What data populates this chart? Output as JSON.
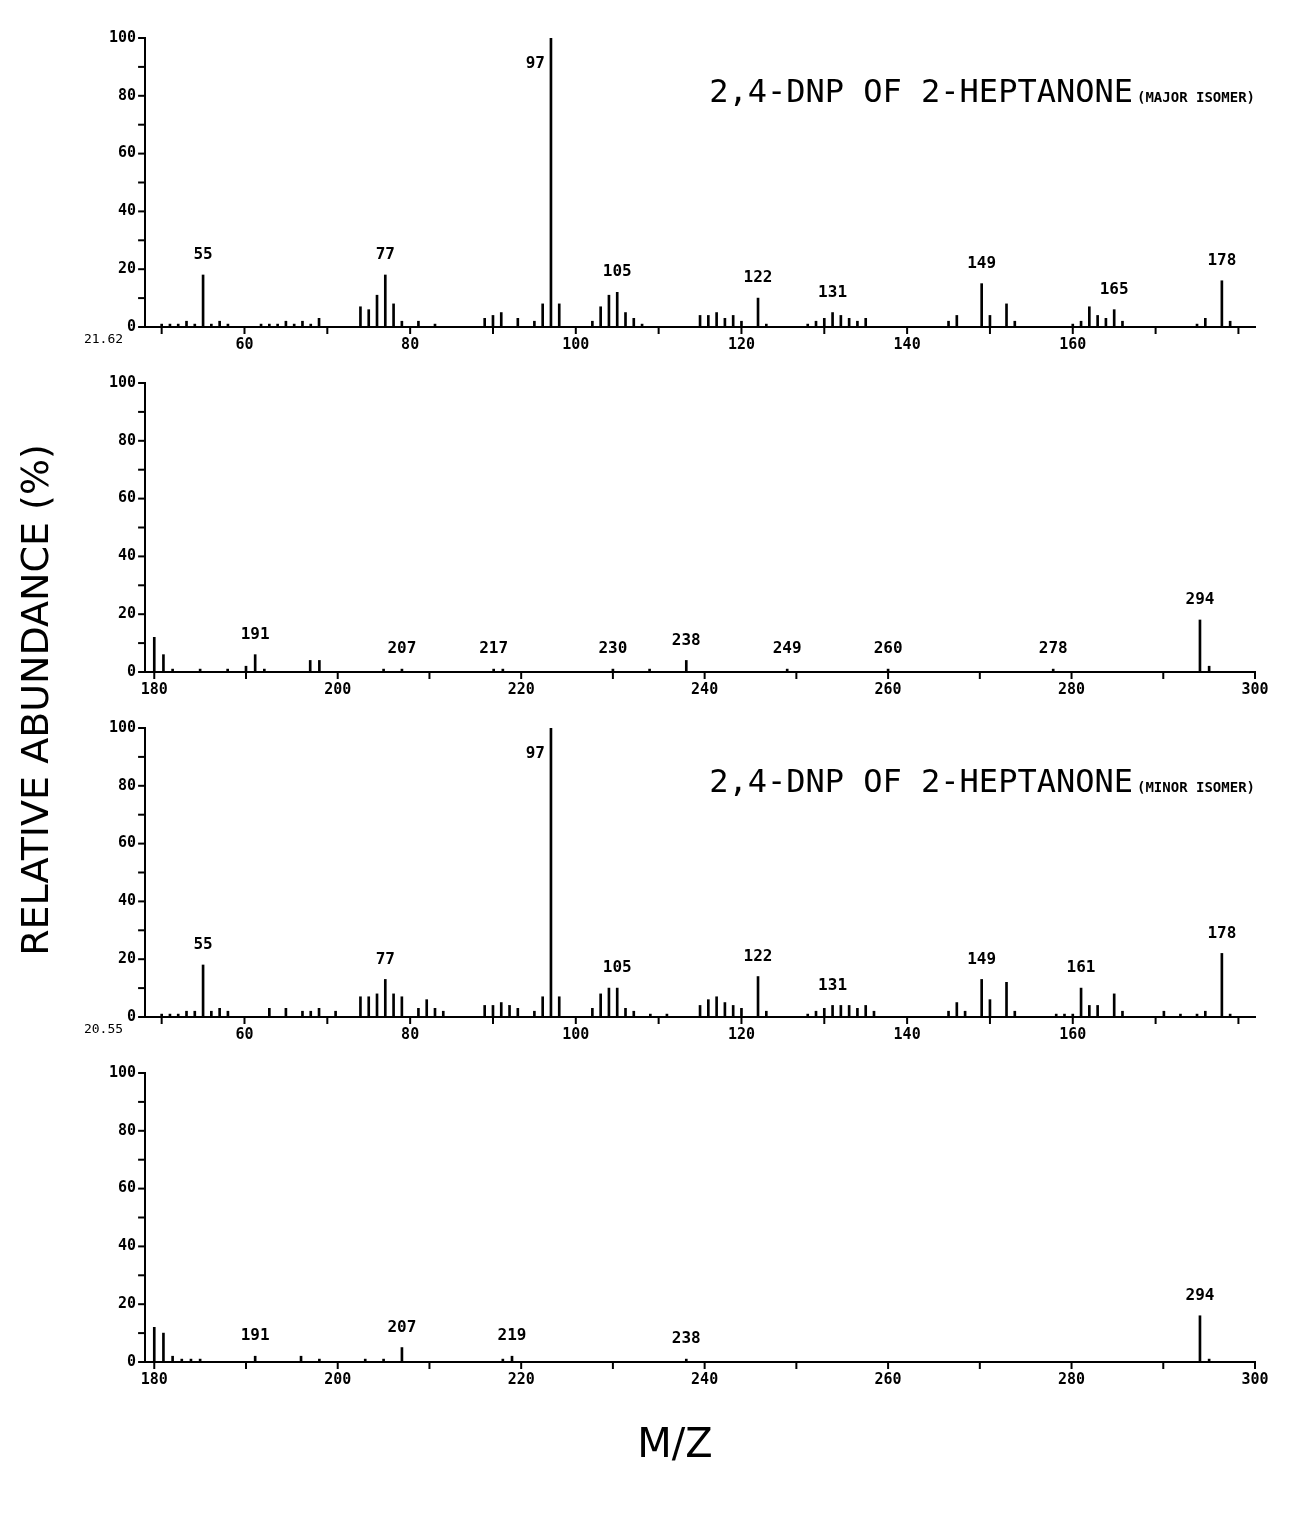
{
  "chart_data": [
    {
      "type": "bar",
      "title": "2,4-DNP OF 2-HEPTANONE",
      "subtitle": "(MAJOR ISOMER)",
      "ylabel": "RELATIVE ABUNDANCE (%)",
      "color": "#000000",
      "legend": false,
      "grid": false,
      "x": [
        50,
        51,
        52,
        53,
        54,
        55,
        56,
        57,
        58,
        62,
        63,
        64,
        65,
        66,
        67,
        68,
        69,
        74,
        75,
        76,
        77,
        78,
        79,
        81,
        83,
        89,
        90,
        91,
        93,
        95,
        96,
        97,
        98,
        102,
        103,
        104,
        105,
        106,
        107,
        108,
        115,
        116,
        117,
        118,
        119,
        120,
        122,
        123,
        128,
        129,
        130,
        131,
        132,
        133,
        134,
        135,
        145,
        146,
        149,
        150,
        152,
        153,
        160,
        161,
        162,
        163,
        164,
        165,
        166,
        175,
        176,
        178,
        179
      ],
      "values": [
        1,
        1,
        1,
        2,
        1,
        18,
        1,
        2,
        1,
        1,
        1,
        1,
        2,
        1,
        2,
        1,
        3,
        7,
        6,
        11,
        18,
        8,
        2,
        2,
        1,
        3,
        4,
        5,
        3,
        2,
        8,
        100,
        8,
        2,
        7,
        11,
        12,
        5,
        3,
        1,
        4,
        4,
        5,
        3,
        4,
        2,
        10,
        1,
        1,
        2,
        3,
        5,
        4,
        3,
        2,
        3,
        2,
        4,
        15,
        4,
        8,
        2,
        1,
        2,
        7,
        4,
        3,
        6,
        2,
        1,
        3,
        16,
        2
      ],
      "xlim": [
        48,
        182
      ],
      "xticks": [
        {
          "value": 50,
          "label": null
        },
        60,
        {
          "value": 70,
          "label": null
        },
        80,
        {
          "value": 90,
          "label": null
        },
        100,
        {
          "value": 110,
          "label": null
        },
        120,
        {
          "value": 130,
          "label": null
        },
        140,
        {
          "value": 150,
          "label": null
        },
        160,
        {
          "value": 170,
          "label": null
        },
        {
          "value": 180,
          "label": null
        }
      ],
      "ylim": [
        0,
        100
      ],
      "yticks": [
        0,
        {
          "value": 10,
          "label": null
        },
        20,
        {
          "value": 30,
          "label": null
        },
        40,
        {
          "value": 50,
          "label": null
        },
        60,
        {
          "value": 70,
          "label": null
        },
        80,
        {
          "value": 90,
          "label": null
        },
        100
      ],
      "annotations": [
        "21.62",
        {
          "text": "55",
          "x": 55,
          "y": 18
        },
        {
          "text": "77",
          "x": 77,
          "y": 18
        },
        {
          "text": "97",
          "x": 97,
          "y": 100
        },
        {
          "text": "105",
          "x": 105,
          "y": 12
        },
        {
          "text": "122",
          "x": 122,
          "y": 10
        },
        {
          "text": "131",
          "x": 131,
          "y": 5
        },
        {
          "text": "149",
          "x": 149,
          "y": 15
        },
        {
          "text": "165",
          "x": 165,
          "y": 6
        },
        {
          "text": "178",
          "x": 178,
          "y": 16
        }
      ]
    },
    {
      "type": "bar",
      "color": "#000000",
      "legend": false,
      "grid": false,
      "x": [
        180,
        181,
        182,
        185,
        188,
        190,
        191,
        192,
        197,
        198,
        205,
        207,
        217,
        218,
        230,
        234,
        238,
        249,
        260,
        278,
        294,
        295
      ],
      "values": [
        12,
        6,
        1,
        1,
        1,
        2,
        6,
        1,
        4,
        4,
        1,
        1,
        1,
        1,
        1,
        1,
        4,
        1,
        1,
        1,
        18,
        2
      ],
      "xlim": [
        179,
        300
      ],
      "xticks": [
        180,
        {
          "value": 190,
          "label": null
        },
        200,
        {
          "value": 210,
          "label": null
        },
        220,
        {
          "value": 230,
          "label": null
        },
        240,
        {
          "value": 250,
          "label": null
        },
        260,
        {
          "value": 270,
          "label": null
        },
        280,
        {
          "value": 290,
          "label": null
        },
        300
      ],
      "ylim": [
        0,
        100
      ],
      "yticks": [
        0,
        {
          "value": 10,
          "label": null
        },
        20,
        {
          "value": 30,
          "label": null
        },
        40,
        {
          "value": 50,
          "label": null
        },
        60,
        {
          "value": 70,
          "label": null
        },
        80,
        {
          "value": 90,
          "label": null
        },
        100
      ],
      "annotations": [
        {
          "text": "191",
          "x": 191,
          "y": 6
        },
        {
          "text": "207",
          "x": 207,
          "y": 1
        },
        {
          "text": "217",
          "x": 217,
          "y": 1
        },
        {
          "text": "230",
          "x": 230,
          "y": 1
        },
        {
          "text": "238",
          "x": 238,
          "y": 4
        },
        {
          "text": "249",
          "x": 249,
          "y": 1
        },
        {
          "text": "260",
          "x": 260,
          "y": 1
        },
        {
          "text": "278",
          "x": 278,
          "y": 1
        },
        {
          "text": "294",
          "x": 294,
          "y": 18
        }
      ]
    },
    {
      "type": "bar",
      "title": "2,4-DNP OF 2-HEPTANONE",
      "subtitle": "(MINOR ISOMER)",
      "color": "#000000",
      "legend": false,
      "grid": false,
      "x": [
        50,
        51,
        52,
        53,
        54,
        55,
        56,
        57,
        58,
        63,
        65,
        67,
        68,
        69,
        71,
        74,
        75,
        76,
        77,
        78,
        79,
        81,
        82,
        83,
        84,
        89,
        90,
        91,
        92,
        93,
        95,
        96,
        97,
        98,
        102,
        103,
        104,
        105,
        106,
        107,
        109,
        111,
        115,
        116,
        117,
        118,
        119,
        120,
        122,
        123,
        128,
        129,
        130,
        131,
        132,
        133,
        134,
        135,
        136,
        145,
        146,
        147,
        149,
        150,
        152,
        153,
        158,
        159,
        160,
        161,
        162,
        163,
        165,
        166,
        171,
        173,
        175,
        176,
        178,
        179
      ],
      "values": [
        1,
        1,
        1,
        2,
        2,
        18,
        2,
        3,
        2,
        3,
        3,
        2,
        2,
        3,
        2,
        7,
        7,
        8,
        13,
        8,
        7,
        3,
        6,
        3,
        2,
        4,
        4,
        5,
        4,
        3,
        2,
        7,
        100,
        7,
        3,
        8,
        10,
        10,
        3,
        2,
        1,
        1,
        4,
        6,
        7,
        5,
        4,
        3,
        14,
        2,
        1,
        2,
        3,
        4,
        4,
        4,
        3,
        4,
        2,
        2,
        5,
        2,
        13,
        6,
        12,
        2,
        1,
        1,
        1,
        10,
        4,
        4,
        8,
        2,
        2,
        1,
        1,
        2,
        22,
        1
      ],
      "xlim": [
        48,
        182
      ],
      "xticks": [
        {
          "value": 50,
          "label": null
        },
        60,
        {
          "value": 70,
          "label": null
        },
        80,
        {
          "value": 90,
          "label": null
        },
        100,
        {
          "value": 110,
          "label": null
        },
        120,
        {
          "value": 130,
          "label": null
        },
        140,
        {
          "value": 150,
          "label": null
        },
        160,
        {
          "value": 170,
          "label": null
        },
        {
          "value": 180,
          "label": null
        }
      ],
      "ylim": [
        0,
        100
      ],
      "yticks": [
        0,
        {
          "value": 10,
          "label": null
        },
        20,
        {
          "value": 30,
          "label": null
        },
        40,
        {
          "value": 50,
          "label": null
        },
        60,
        {
          "value": 70,
          "label": null
        },
        80,
        {
          "value": 90,
          "label": null
        },
        100
      ],
      "annotations": [
        "20.55",
        {
          "text": "55",
          "x": 55,
          "y": 18
        },
        {
          "text": "77",
          "x": 77,
          "y": 13
        },
        {
          "text": "97",
          "x": 97,
          "y": 100
        },
        {
          "text": "105",
          "x": 105,
          "y": 10
        },
        {
          "text": "122",
          "x": 122,
          "y": 14
        },
        {
          "text": "131",
          "x": 131,
          "y": 4
        },
        {
          "text": "149",
          "x": 149,
          "y": 13
        },
        {
          "text": "161",
          "x": 161,
          "y": 10
        },
        {
          "text": "178",
          "x": 178,
          "y": 22
        }
      ]
    },
    {
      "type": "bar",
      "xlabel": "M/Z",
      "color": "#000000",
      "legend": false,
      "grid": false,
      "x": [
        180,
        181,
        182,
        183,
        184,
        185,
        191,
        196,
        198,
        203,
        205,
        207,
        218,
        219,
        238,
        294,
        295
      ],
      "values": [
        12,
        10,
        2,
        1,
        1,
        1,
        2,
        2,
        1,
        1,
        1,
        5,
        1,
        2,
        1,
        16,
        1
      ],
      "xlim": [
        179,
        300
      ],
      "xticks": [
        180,
        {
          "value": 190,
          "label": null
        },
        200,
        {
          "value": 210,
          "label": null
        },
        220,
        {
          "value": 230,
          "label": null
        },
        240,
        {
          "value": 250,
          "label": null
        },
        260,
        {
          "value": 270,
          "label": null
        },
        280,
        {
          "value": 290,
          "label": null
        },
        300
      ],
      "ylim": [
        0,
        100
      ],
      "yticks": [
        0,
        {
          "value": 10,
          "label": null
        },
        20,
        {
          "value": 30,
          "label": null
        },
        40,
        {
          "value": 50,
          "label": null
        },
        60,
        {
          "value": 70,
          "label": null
        },
        80,
        {
          "value": 90,
          "label": null
        },
        100
      ],
      "annotations": [
        {
          "text": "191",
          "x": 191,
          "y": 2
        },
        {
          "text": "207",
          "x": 207,
          "y": 5
        },
        {
          "text": "219",
          "x": 219,
          "y": 2
        },
        {
          "text": "238",
          "x": 238,
          "y": 1
        },
        {
          "text": "294",
          "x": 294,
          "y": 16
        }
      ]
    }
  ]
}
